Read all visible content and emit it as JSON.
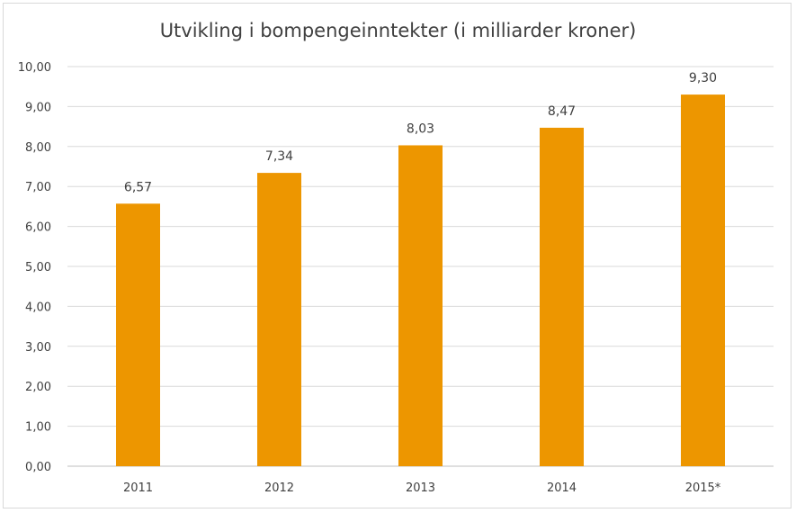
{
  "chart_data": {
    "type": "bar",
    "title": "Utvikling i bompengeinntekter (i milliarder kroner)",
    "categories": [
      "2011",
      "2012",
      "2013",
      "2014",
      "2015*"
    ],
    "values": [
      6.57,
      7.34,
      8.03,
      8.47,
      9.3
    ],
    "value_labels": [
      "6,57",
      "7,34",
      "8,03",
      "8,47",
      "9,30"
    ],
    "y_ticks": [
      "0,00",
      "1,00",
      "2,00",
      "3,00",
      "4,00",
      "5,00",
      "6,00",
      "7,00",
      "8,00",
      "9,00",
      "10,00"
    ],
    "ylim": [
      0,
      10
    ],
    "grid": true,
    "legend": "none",
    "bar_color": "#ED9600",
    "xlabel": "",
    "ylabel": ""
  }
}
